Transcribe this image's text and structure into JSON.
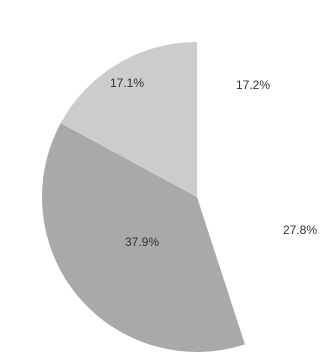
{
  "chart_data": {
    "type": "pie",
    "start_angle_deg": 0,
    "direction": "clockwise",
    "slices": [
      {
        "value": 17.2,
        "label": "17.2%",
        "color": "#ffffff"
      },
      {
        "value": 27.8,
        "label": "27.8%",
        "color": "#ffffff"
      },
      {
        "value": 37.9,
        "label": "37.9%",
        "color": "#a9a9a9"
      },
      {
        "value": 17.1,
        "label": "17.1%",
        "color": "#cccccc"
      }
    ],
    "legend": "none",
    "title": ""
  }
}
